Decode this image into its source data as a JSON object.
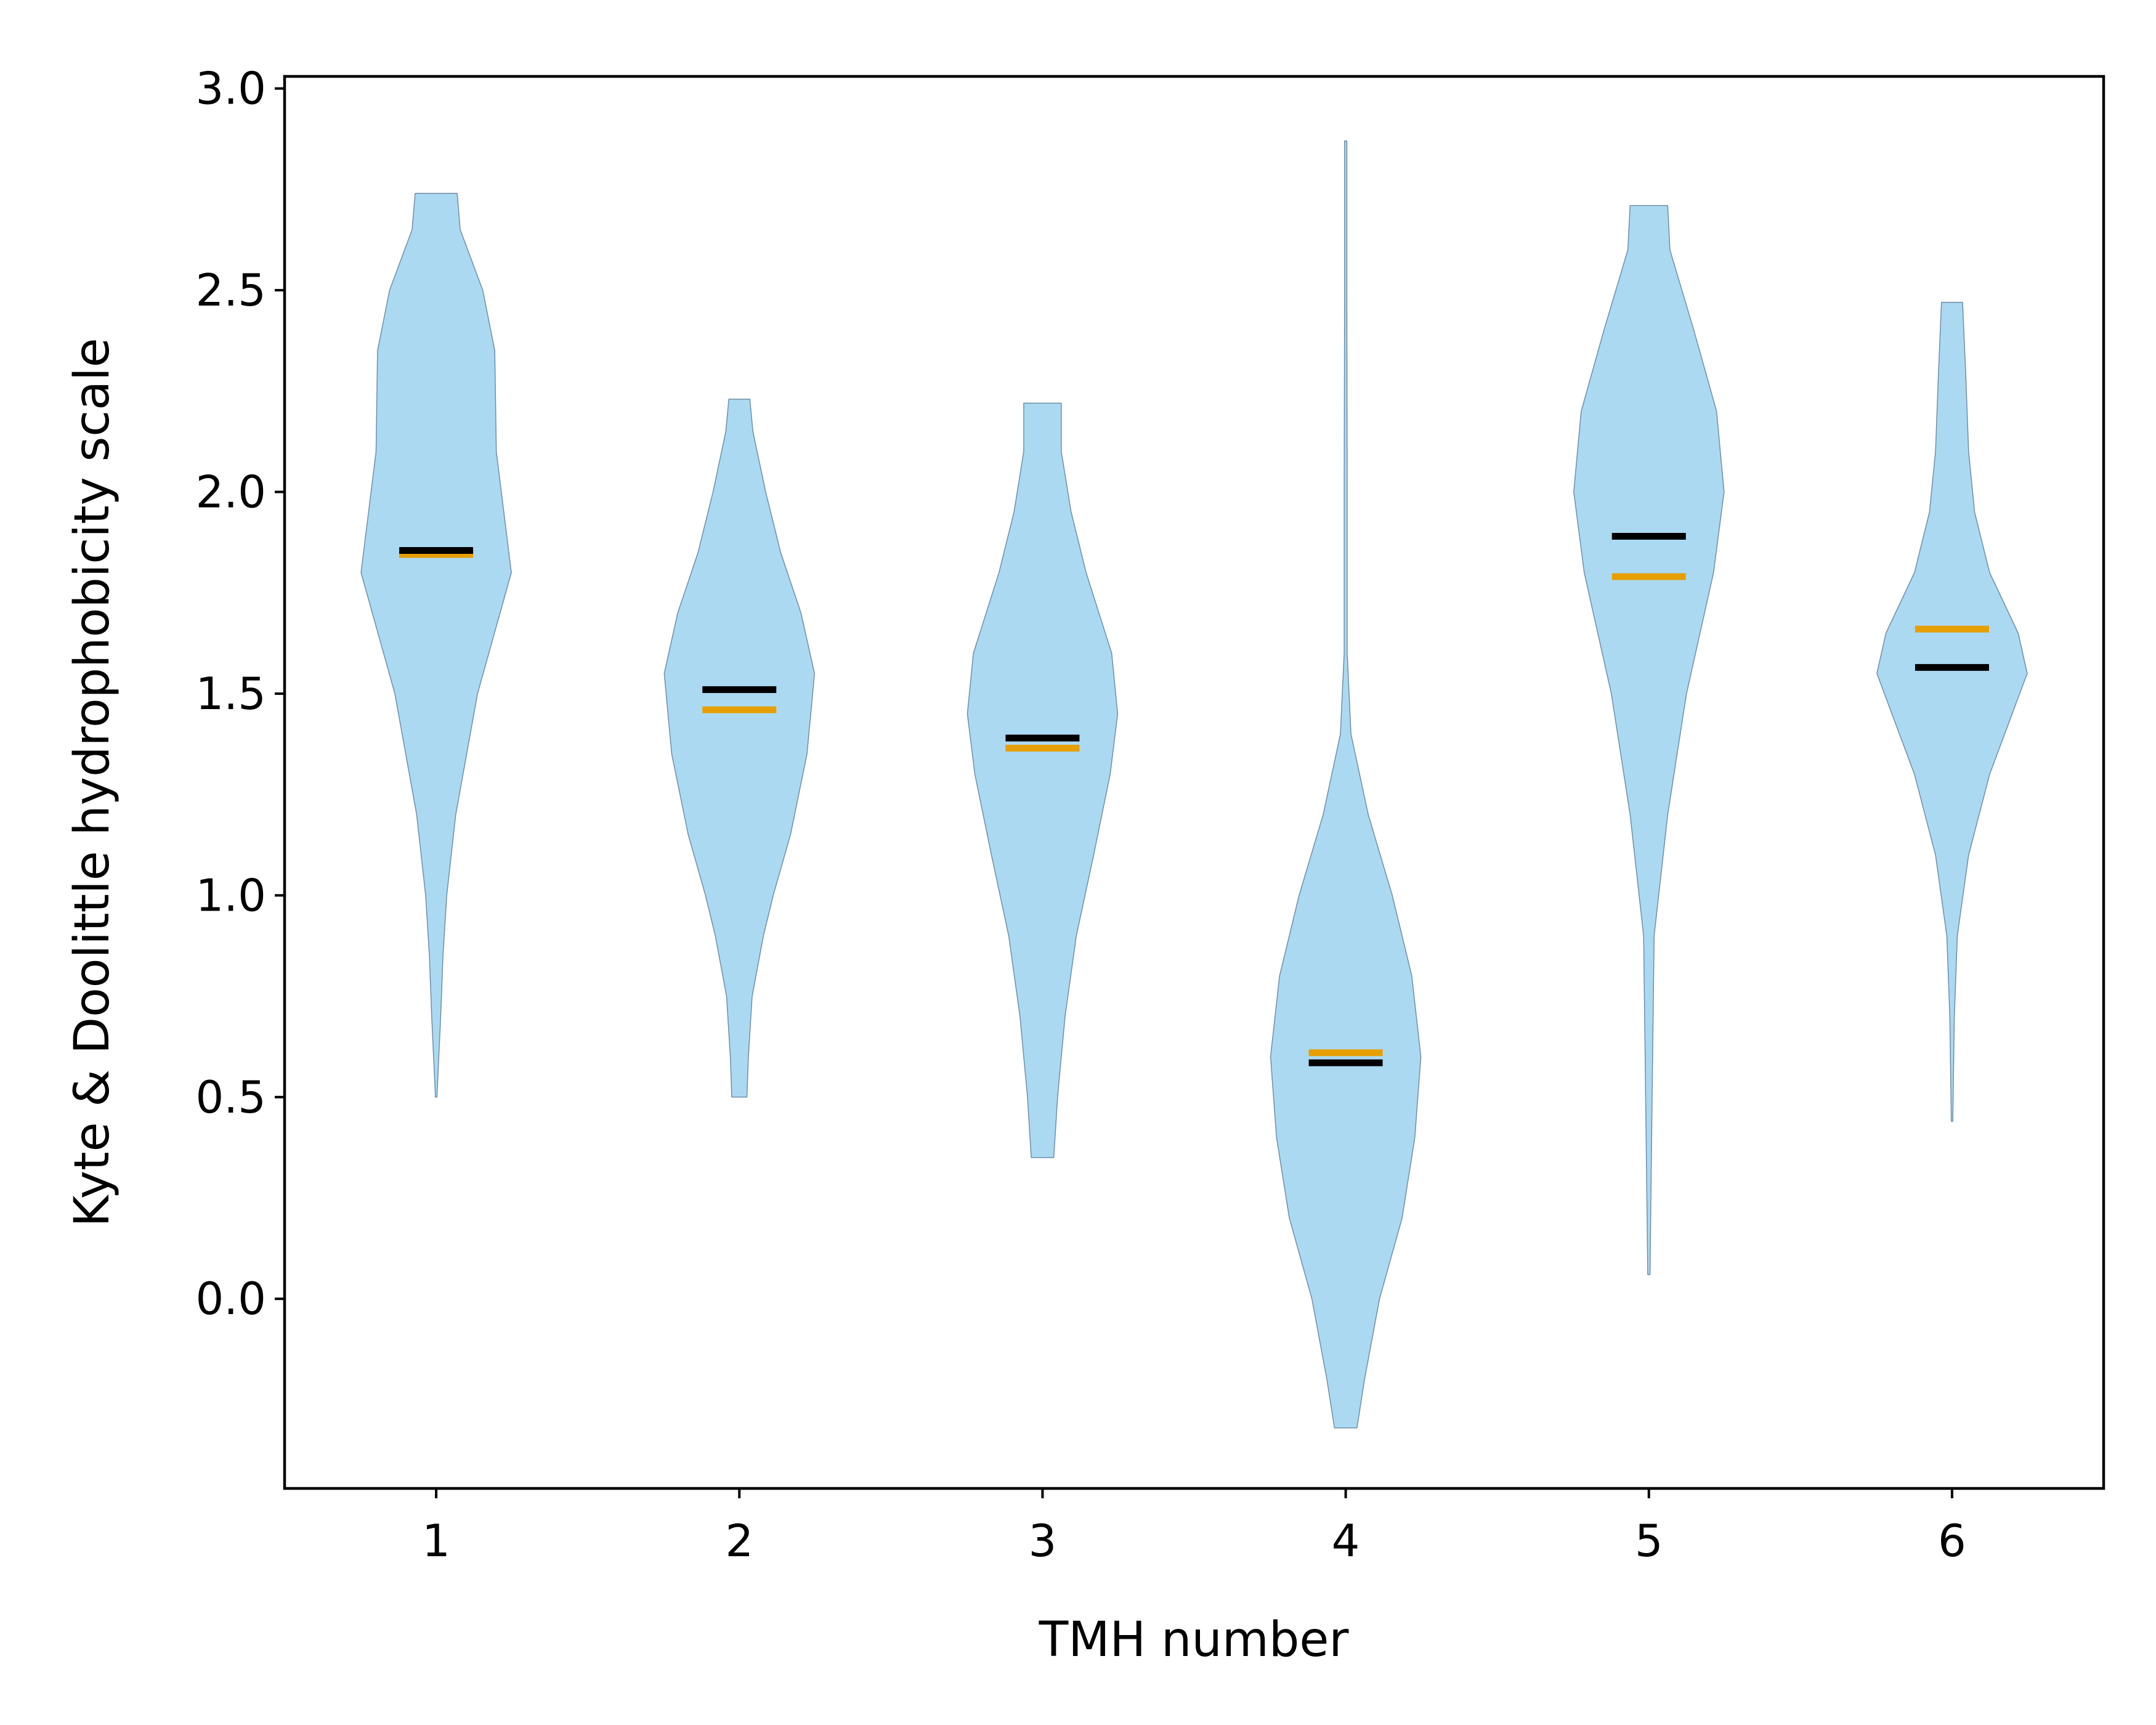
{
  "chart_data": {
    "type": "violin",
    "title": "",
    "xlabel": "TMH number",
    "ylabel": "Kyte & Doolittle hydrophobicity scale",
    "categories": [
      "1",
      "2",
      "3",
      "4",
      "5",
      "6"
    ],
    "ylim": [
      -0.47,
      3.03
    ],
    "yticks": [
      0.0,
      0.5,
      1.0,
      1.5,
      2.0,
      2.5,
      3.0
    ],
    "ytick_labels": [
      "0.0",
      "0.5",
      "1.0",
      "1.5",
      "2.0",
      "2.5",
      "3.0"
    ],
    "grid": false,
    "legend": null,
    "colors": {
      "violin_fill": "#acd9f2",
      "violin_edge": "#6f8fa6",
      "mean": "#e69f00",
      "median": "#000000"
    },
    "violins": [
      {
        "category": "1",
        "min": 0.5,
        "max": 2.74,
        "mean": 1.845,
        "median": 1.855,
        "profile": [
          [
            0.5,
            0.01
          ],
          [
            0.7,
            0.06
          ],
          [
            0.85,
            0.09
          ],
          [
            1.0,
            0.14
          ],
          [
            1.2,
            0.26
          ],
          [
            1.5,
            0.55
          ],
          [
            1.7,
            0.85
          ],
          [
            1.8,
            1.0
          ],
          [
            1.95,
            0.9
          ],
          [
            2.1,
            0.8
          ],
          [
            2.35,
            0.78
          ],
          [
            2.5,
            0.62
          ],
          [
            2.65,
            0.32
          ],
          [
            2.74,
            0.28
          ]
        ]
      },
      {
        "category": "2",
        "min": 0.5,
        "max": 2.23,
        "mean": 1.46,
        "median": 1.51,
        "profile": [
          [
            0.5,
            0.1
          ],
          [
            0.6,
            0.12
          ],
          [
            0.75,
            0.17
          ],
          [
            0.9,
            0.32
          ],
          [
            1.0,
            0.45
          ],
          [
            1.15,
            0.68
          ],
          [
            1.35,
            0.9
          ],
          [
            1.55,
            1.0
          ],
          [
            1.7,
            0.82
          ],
          [
            1.85,
            0.55
          ],
          [
            2.0,
            0.35
          ],
          [
            2.15,
            0.18
          ],
          [
            2.23,
            0.14
          ]
        ]
      },
      {
        "category": "3",
        "min": 0.35,
        "max": 2.22,
        "mean": 1.365,
        "median": 1.39,
        "profile": [
          [
            0.35,
            0.15
          ],
          [
            0.5,
            0.2
          ],
          [
            0.7,
            0.3
          ],
          [
            0.9,
            0.45
          ],
          [
            1.1,
            0.68
          ],
          [
            1.3,
            0.9
          ],
          [
            1.45,
            1.0
          ],
          [
            1.6,
            0.92
          ],
          [
            1.8,
            0.58
          ],
          [
            1.95,
            0.38
          ],
          [
            2.1,
            0.25
          ],
          [
            2.22,
            0.25
          ]
        ]
      },
      {
        "category": "4",
        "min": -0.32,
        "max": 2.87,
        "mean": 0.61,
        "median": 0.585,
        "profile": [
          [
            -0.32,
            0.15
          ],
          [
            -0.2,
            0.25
          ],
          [
            0.0,
            0.45
          ],
          [
            0.2,
            0.75
          ],
          [
            0.4,
            0.92
          ],
          [
            0.6,
            1.0
          ],
          [
            0.8,
            0.88
          ],
          [
            1.0,
            0.62
          ],
          [
            1.2,
            0.3
          ],
          [
            1.4,
            0.07
          ],
          [
            1.6,
            0.02
          ],
          [
            2.0,
            0.02
          ],
          [
            2.5,
            0.015
          ],
          [
            2.87,
            0.015
          ]
        ]
      },
      {
        "category": "5",
        "min": 0.06,
        "max": 2.71,
        "mean": 1.79,
        "median": 1.89,
        "profile": [
          [
            0.06,
            0.015
          ],
          [
            0.3,
            0.03
          ],
          [
            0.6,
            0.05
          ],
          [
            0.9,
            0.07
          ],
          [
            1.2,
            0.25
          ],
          [
            1.5,
            0.5
          ],
          [
            1.8,
            0.86
          ],
          [
            2.0,
            1.0
          ],
          [
            2.2,
            0.9
          ],
          [
            2.4,
            0.6
          ],
          [
            2.6,
            0.28
          ],
          [
            2.71,
            0.25
          ]
        ]
      },
      {
        "category": "6",
        "min": 0.44,
        "max": 2.47,
        "mean": 1.66,
        "median": 1.565,
        "profile": [
          [
            0.44,
            0.01
          ],
          [
            0.7,
            0.03
          ],
          [
            0.9,
            0.07
          ],
          [
            1.1,
            0.22
          ],
          [
            1.3,
            0.5
          ],
          [
            1.45,
            0.8
          ],
          [
            1.55,
            1.0
          ],
          [
            1.65,
            0.88
          ],
          [
            1.8,
            0.5
          ],
          [
            1.95,
            0.3
          ],
          [
            2.1,
            0.22
          ],
          [
            2.3,
            0.18
          ],
          [
            2.47,
            0.14
          ]
        ]
      }
    ]
  }
}
